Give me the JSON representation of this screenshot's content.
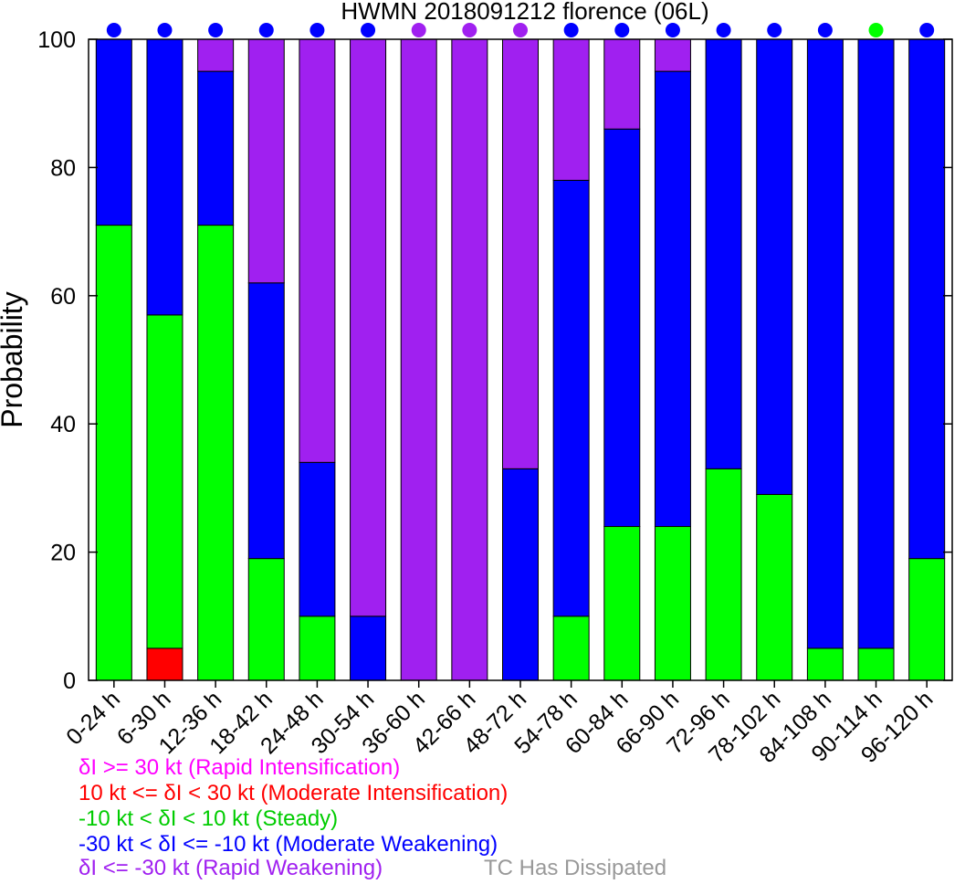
{
  "chart_data": {
    "type": "bar",
    "stacked": true,
    "title": "HWMN 2018091212 florence (06L)",
    "xlabel": "",
    "ylabel": "Probability",
    "ylim": [
      0,
      100
    ],
    "yticks": [
      "0",
      "20",
      "40",
      "60",
      "80",
      "100"
    ],
    "grid": false,
    "categories": [
      "0-24 h",
      "6-30 h",
      "12-36 h",
      "18-42 h",
      "24-48 h",
      "30-54 h",
      "36-60 h",
      "42-66 h",
      "48-72 h",
      "54-78 h",
      "60-84 h",
      "66-90 h",
      "72-96 h",
      "78-102 h",
      "84-108 h",
      "90-114 h",
      "96-120 h"
    ],
    "series": [
      {
        "name": "Moderate Intensification",
        "color": "#ff0000",
        "values": [
          0,
          5,
          0,
          0,
          0,
          0,
          0,
          0,
          0,
          0,
          0,
          0,
          0,
          0,
          0,
          0,
          0
        ]
      },
      {
        "name": "Steady",
        "color": "#00ff00",
        "values": [
          71,
          52,
          71,
          19,
          10,
          0,
          0,
          0,
          0,
          10,
          24,
          24,
          33,
          29,
          5,
          5,
          19
        ]
      },
      {
        "name": "Moderate Weakening",
        "color": "#0000ff",
        "values": [
          29,
          43,
          24,
          43,
          24,
          10,
          0,
          0,
          33,
          68,
          62,
          71,
          67,
          71,
          95,
          95,
          81
        ]
      },
      {
        "name": "Rapid Weakening",
        "color": "#a020f0",
        "values": [
          0,
          0,
          5,
          38,
          66,
          90,
          100,
          100,
          67,
          22,
          14,
          5,
          0,
          0,
          0,
          0,
          0
        ]
      }
    ],
    "top_markers": [
      "#0000ff",
      "#0000ff",
      "#0000ff",
      "#0000ff",
      "#0000ff",
      "#0000ff",
      "#a020f0",
      "#a020f0",
      "#a020f0",
      "#0000ff",
      "#0000ff",
      "#0000ff",
      "#0000ff",
      "#0000ff",
      "#0000ff",
      "#00ff00",
      "#0000ff"
    ],
    "legend_placement": "bottom-left",
    "legend": [
      {
        "text": "δI >= 30 kt (Rapid Intensification)",
        "color": "#ff00ff"
      },
      {
        "text": "10 kt <= δI < 30 kt (Moderate Intensification)",
        "color": "#ff0000"
      },
      {
        "text": "-10 kt < δI < 10 kt (Steady)",
        "color": "#00cc00"
      },
      {
        "text": "-30 kt < δI <= -10 kt (Moderate Weakening)",
        "color": "#0000ff"
      },
      {
        "text": "δI <= -30 kt (Rapid Weakening)",
        "color": "#a020f0"
      }
    ],
    "dissipated_label": {
      "text": "TC Has Dissipated",
      "color": "#999999"
    }
  }
}
